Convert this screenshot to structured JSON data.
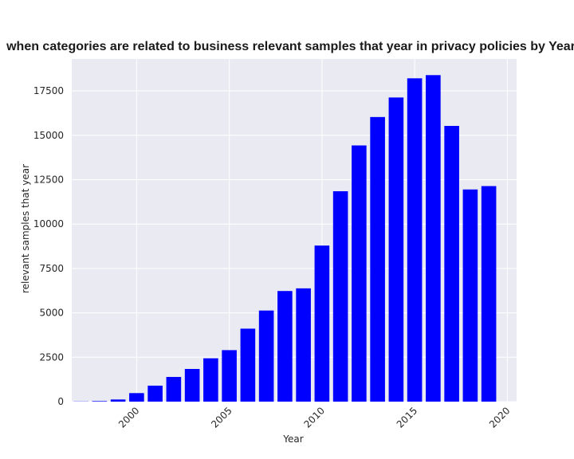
{
  "chart_data": {
    "type": "bar",
    "title": "when categories are related to business relevant samples that year in privacy policies by Year",
    "xlabel": "Year",
    "ylabel": "relevant samples that year",
    "x": [
      1997,
      1998,
      1999,
      2000,
      2001,
      2002,
      2003,
      2004,
      2005,
      2006,
      2007,
      2008,
      2009,
      2010,
      2011,
      2012,
      2013,
      2014,
      2015,
      2016,
      2017,
      2018,
      2019
    ],
    "values": [
      10,
      30,
      120,
      480,
      900,
      1390,
      1840,
      2440,
      2900,
      4110,
      5130,
      6230,
      6380,
      8790,
      11850,
      14430,
      16030,
      17130,
      18210,
      18390,
      15530,
      11950,
      12140
    ],
    "xlim": [
      1996.5,
      2020.5
    ],
    "ylim": [
      0,
      19300
    ],
    "xticks": [
      "2000",
      "2005",
      "2010",
      "2015",
      "2020"
    ],
    "yticks": [
      "0",
      "2500",
      "5000",
      "7500",
      "10000",
      "12500",
      "15000",
      "17500"
    ],
    "bar_color": "#0000ff",
    "plot_background": "#eaeaf2",
    "grid": true
  }
}
